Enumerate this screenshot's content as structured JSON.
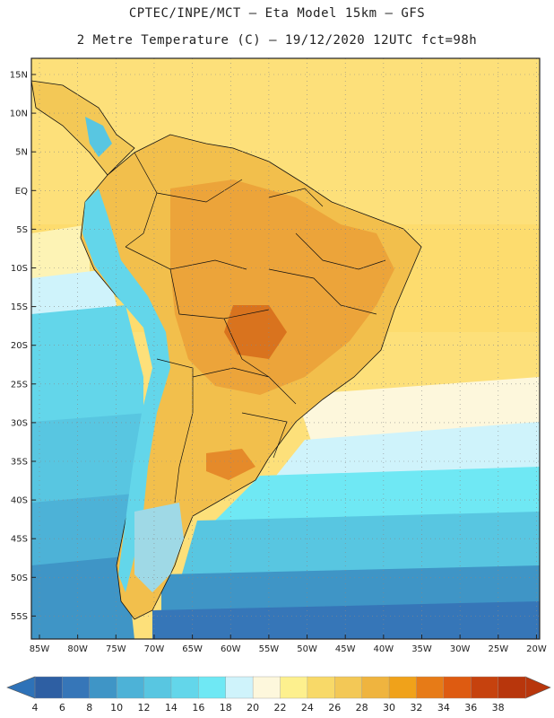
{
  "header": {
    "line1": "CPTEC/INPE/MCT –  Eta Model 15km – GFS",
    "line2": "2 Metre Temperature (C) – 19/12/2020 12UTC fct=98h"
  },
  "map": {
    "lat_labels": [
      "15N",
      "10N",
      "5N",
      "EQ",
      "5S",
      "10S",
      "15S",
      "20S",
      "25S",
      "30S",
      "35S",
      "40S",
      "45S",
      "50S",
      "55S"
    ],
    "lon_labels": [
      "85W",
      "80W",
      "75W",
      "70W",
      "65W",
      "60W",
      "55W",
      "50W",
      "45W",
      "40W",
      "35W",
      "30W",
      "25W",
      "20W"
    ]
  },
  "colorbar": {
    "labels": [
      "4",
      "6",
      "8",
      "10",
      "12",
      "14",
      "16",
      "18",
      "20",
      "22",
      "24",
      "26",
      "28",
      "30",
      "32",
      "34",
      "36",
      "38"
    ],
    "colors": [
      "#2e5fa3",
      "#3676b8",
      "#3f95c6",
      "#4db2d7",
      "#58c6e1",
      "#63d6ea",
      "#6fe8f4",
      "#cff3fb",
      "#fdf7dc",
      "#fdf08e",
      "#f8d968",
      "#f3c856",
      "#efb43f",
      "#f0a21a",
      "#e77b17",
      "#de5b11",
      "#c6420e",
      "#b8360c"
    ],
    "low_color": "#2e72b8",
    "high_color": "#b8360c"
  }
}
